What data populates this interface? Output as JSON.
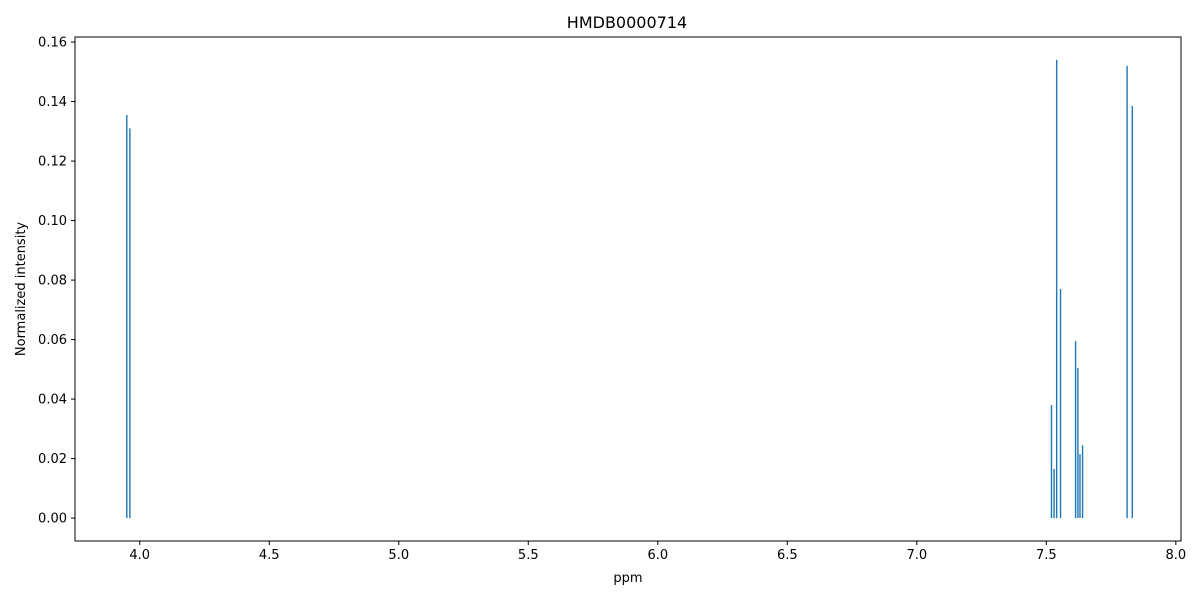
{
  "chart_data": {
    "type": "bar",
    "title": "HMDB0000714",
    "xlabel": "ppm",
    "ylabel": "Normalized intensity",
    "xlim": [
      3.75,
      8.02
    ],
    "ylim": [
      -0.0077,
      0.1617
    ],
    "xticks": [
      4.0,
      4.5,
      5.0,
      5.5,
      6.0,
      6.5,
      7.0,
      7.5,
      8.0
    ],
    "xtick_labels": [
      "4.0",
      "4.5",
      "5.0",
      "5.5",
      "6.0",
      "6.5",
      "7.0",
      "7.5",
      "8.0"
    ],
    "yticks": [
      0.0,
      0.02,
      0.04,
      0.06,
      0.08,
      0.1,
      0.12,
      0.14,
      0.16
    ],
    "ytick_labels": [
      "0.00",
      "0.02",
      "0.04",
      "0.06",
      "0.08",
      "0.10",
      "0.12",
      "0.14",
      "0.16"
    ],
    "grid": false,
    "color": "#1f77b4",
    "series": [
      {
        "x": [
          3.95,
          3.962,
          7.52,
          7.53,
          7.54,
          7.555,
          7.613,
          7.622,
          7.63,
          7.64,
          7.812,
          7.832
        ],
        "values": [
          0.1355,
          0.131,
          0.038,
          0.0165,
          0.154,
          0.077,
          0.0595,
          0.0505,
          0.0215,
          0.0245,
          0.152,
          0.1385
        ]
      }
    ]
  }
}
